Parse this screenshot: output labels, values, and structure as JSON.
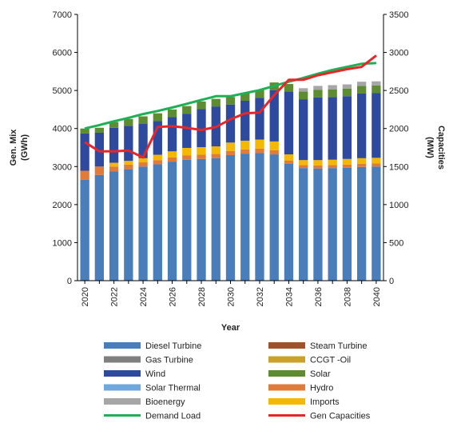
{
  "chart_data": {
    "type": "bar",
    "x": [
      2020,
      2021,
      2022,
      2023,
      2024,
      2025,
      2026,
      2027,
      2028,
      2029,
      2030,
      2031,
      2032,
      2033,
      2034,
      2035,
      2036,
      2037,
      2038,
      2039,
      2040
    ],
    "x_tick_labels": [
      "2020",
      "2022",
      "2024",
      "2026",
      "2028",
      "2030",
      "2032",
      "2034",
      "2036",
      "2038",
      "2040"
    ],
    "xlabel": "Year",
    "ylabel": "Gen. Mix (GWh)",
    "ylabel_lines": [
      "Gen. Mix",
      "(GWh)"
    ],
    "ylabel_right": "Capacities (MW)",
    "ylabel_right_lines": [
      "Capacities",
      "(MW)"
    ],
    "ylim": [
      0,
      7000
    ],
    "ylim_right": [
      0,
      3500
    ],
    "yticks": [
      0,
      1000,
      2000,
      3000,
      4000,
      5000,
      6000,
      7000
    ],
    "yticks_right": [
      0,
      500,
      1000,
      1500,
      2000,
      2500,
      3000,
      3500
    ],
    "grid": false,
    "legend_position": "bottom",
    "series": [
      {
        "name": "Diesel Turbine",
        "kind": "bar",
        "color": "#4A7EBB",
        "values": [
          2650,
          2780,
          2870,
          2930,
          3000,
          3060,
          3130,
          3180,
          3200,
          3220,
          3300,
          3340,
          3360,
          3320,
          3070,
          2960,
          2950,
          2960,
          2970,
          2990,
          3000
        ]
      },
      {
        "name": "Steam Turbine",
        "kind": "bar",
        "color": "#A0522D",
        "values": [
          0,
          0,
          0,
          0,
          0,
          0,
          0,
          0,
          0,
          0,
          0,
          0,
          0,
          0,
          0,
          0,
          0,
          0,
          0,
          0,
          0
        ]
      },
      {
        "name": "Gas Turbine",
        "kind": "bar",
        "color": "#7F7F7F",
        "values": [
          0,
          0,
          0,
          0,
          0,
          0,
          0,
          0,
          0,
          0,
          0,
          0,
          0,
          0,
          0,
          0,
          0,
          0,
          0,
          0,
          0
        ]
      },
      {
        "name": "CCGT -Oil",
        "kind": "bar",
        "color": "#C9A227",
        "values": [
          0,
          0,
          0,
          0,
          0,
          0,
          0,
          0,
          0,
          0,
          0,
          0,
          0,
          0,
          0,
          0,
          0,
          0,
          0,
          0,
          0
        ]
      },
      {
        "name": "Hydro",
        "kind": "bar",
        "color": "#E07B39",
        "values": [
          240,
          220,
          130,
          120,
          110,
          110,
          110,
          110,
          110,
          110,
          110,
          110,
          110,
          110,
          90,
          80,
          80,
          80,
          80,
          80,
          80
        ]
      },
      {
        "name": "Imports",
        "kind": "bar",
        "color": "#F5B800",
        "values": [
          0,
          0,
          100,
          100,
          110,
          140,
          160,
          200,
          200,
          200,
          220,
          230,
          240,
          230,
          160,
          130,
          140,
          140,
          150,
          150,
          150
        ]
      },
      {
        "name": "Wind",
        "kind": "bar",
        "color": "#2E4A9E",
        "values": [
          980,
          890,
          920,
          920,
          900,
          890,
          900,
          900,
          1000,
          1050,
          1000,
          1050,
          1100,
          1350,
          1650,
          1600,
          1650,
          1650,
          1650,
          1700,
          1700
        ]
      },
      {
        "name": "Solar",
        "kind": "bar",
        "color": "#5E8C31",
        "values": [
          130,
          130,
          150,
          180,
          200,
          200,
          200,
          200,
          200,
          200,
          200,
          200,
          200,
          200,
          200,
          200,
          200,
          200,
          200,
          200,
          200
        ]
      },
      {
        "name": "Solar Thermal",
        "kind": "bar",
        "color": "#6FA8DC",
        "values": [
          0,
          0,
          0,
          0,
          0,
          0,
          0,
          0,
          0,
          0,
          0,
          0,
          0,
          0,
          0,
          0,
          0,
          0,
          0,
          0,
          0
        ]
      },
      {
        "name": "Bioenergy",
        "kind": "bar",
        "color": "#A6A6A6",
        "values": [
          0,
          0,
          0,
          0,
          0,
          0,
          0,
          0,
          0,
          0,
          0,
          0,
          0,
          0,
          0,
          90,
          100,
          110,
          110,
          110,
          110
        ]
      },
      {
        "name": "Demand Load",
        "kind": "line",
        "axis": "left",
        "color": "#1DB055",
        "values": [
          4000,
          4090,
          4190,
          4280,
          4380,
          4460,
          4550,
          4650,
          4750,
          4850,
          4850,
          4930,
          5010,
          5120,
          5230,
          5330,
          5440,
          5540,
          5620,
          5700,
          5720
        ]
      },
      {
        "name": "Gen Capacities",
        "kind": "line",
        "axis": "right",
        "color": "#E8262A",
        "values": [
          1820,
          1700,
          1700,
          1710,
          1620,
          2020,
          2030,
          2010,
          1980,
          2020,
          2120,
          2200,
          2210,
          2440,
          2640,
          2640,
          2700,
          2740,
          2780,
          2810,
          2960
        ]
      }
    ]
  },
  "legend": [
    {
      "label": "Diesel Turbine",
      "color": "#4A7EBB",
      "kind": "bar"
    },
    {
      "label": "Steam Turbine",
      "color": "#A0522D",
      "kind": "bar"
    },
    {
      "label": "Gas Turbine",
      "color": "#7F7F7F",
      "kind": "bar"
    },
    {
      "label": "CCGT -Oil",
      "color": "#C9A227",
      "kind": "bar"
    },
    {
      "label": "Wind",
      "color": "#2E4A9E",
      "kind": "bar"
    },
    {
      "label": "Solar",
      "color": "#5E8C31",
      "kind": "bar"
    },
    {
      "label": "Solar Thermal",
      "color": "#6FA8DC",
      "kind": "bar"
    },
    {
      "label": "Hydro",
      "color": "#E07B39",
      "kind": "bar"
    },
    {
      "label": "Bioenergy",
      "color": "#A6A6A6",
      "kind": "bar"
    },
    {
      "label": "Imports",
      "color": "#F5B800",
      "kind": "bar"
    },
    {
      "label": "Demand Load",
      "color": "#1DB055",
      "kind": "line"
    },
    {
      "label": "Gen Capacities",
      "color": "#E8262A",
      "kind": "line"
    }
  ]
}
